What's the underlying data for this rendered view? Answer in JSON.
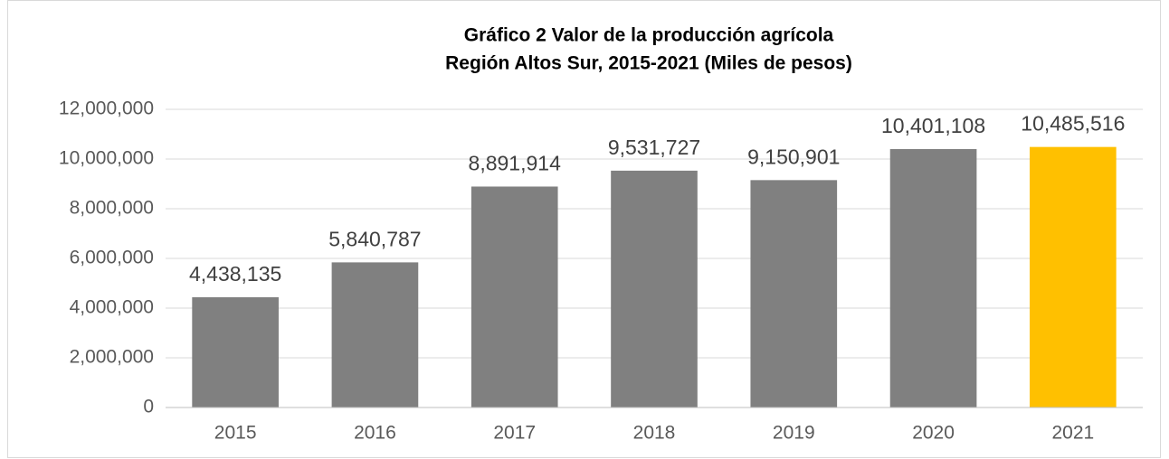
{
  "chart_data": {
    "type": "bar",
    "title": [
      "Gráfico 2 Valor de la producción agrícola",
      "Región Altos Sur, 2015-2021 (Miles de pesos)"
    ],
    "categories": [
      "2015",
      "2016",
      "2017",
      "2018",
      "2019",
      "2020",
      "2021"
    ],
    "values": [
      4438135,
      5840787,
      8891914,
      9531727,
      9150901,
      10401108,
      10485516
    ],
    "value_labels": [
      "4,438,135",
      "5,840,787",
      "8,891,914",
      "9,531,727",
      "9,150,901",
      "10,401,108",
      "10,485,516"
    ],
    "colors": [
      "#808080",
      "#808080",
      "#808080",
      "#808080",
      "#808080",
      "#808080",
      "#ffc000"
    ],
    "ylim": [
      0,
      12000000
    ],
    "yticks": [
      0,
      {
        "value": 2000000,
        "label": "2,000,000"
      },
      {
        "value": 4000000,
        "label": "4,000,000"
      },
      {
        "value": 6000000,
        "label": "6,000,000"
      },
      {
        "value": 8000000,
        "label": "8,000,000"
      },
      {
        "value": 10000000,
        "label": "10,000,000"
      },
      {
        "value": 12000000,
        "label": "12,000,000"
      }
    ],
    "grid": true
  }
}
